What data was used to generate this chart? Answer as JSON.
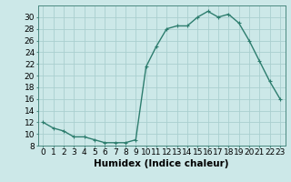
{
  "x": [
    0,
    1,
    2,
    3,
    4,
    5,
    6,
    7,
    8,
    9,
    10,
    11,
    12,
    13,
    14,
    15,
    16,
    17,
    18,
    19,
    20,
    21,
    22,
    23
  ],
  "y": [
    12,
    11,
    10.5,
    9.5,
    9.5,
    9,
    8.5,
    8.5,
    8.5,
    9,
    21.5,
    25,
    28,
    28.5,
    28.5,
    30,
    31,
    30,
    30.5,
    29,
    26,
    22.5,
    19,
    16
  ],
  "line_color": "#2d7d6e",
  "marker": "+",
  "marker_color": "#2d7d6e",
  "bg_color": "#cce8e8",
  "grid_color": "#aacfcf",
  "xlabel": "Humidex (Indice chaleur)",
  "xlim": [
    -0.5,
    23.5
  ],
  "ylim": [
    8,
    32
  ],
  "yticks": [
    8,
    10,
    12,
    14,
    16,
    18,
    20,
    22,
    24,
    26,
    28,
    30
  ],
  "xticks": [
    0,
    1,
    2,
    3,
    4,
    5,
    6,
    7,
    8,
    9,
    10,
    11,
    12,
    13,
    14,
    15,
    16,
    17,
    18,
    19,
    20,
    21,
    22,
    23
  ],
  "xlabel_fontsize": 7.5,
  "tick_fontsize": 6.5,
  "line_width": 1.0,
  "marker_size": 3.5
}
